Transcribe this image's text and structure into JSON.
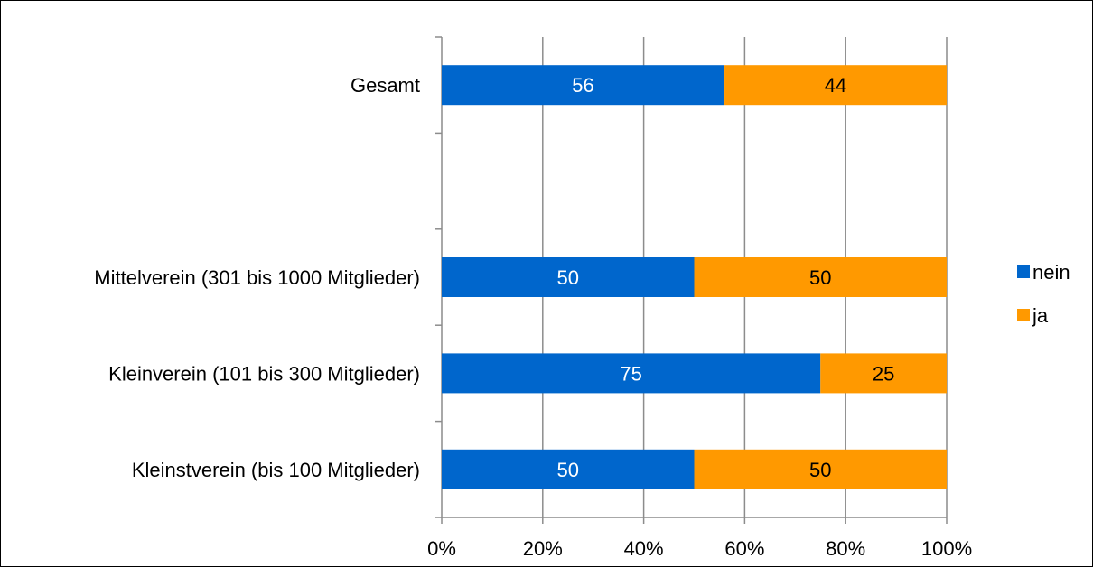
{
  "chart_data": {
    "type": "bar",
    "orientation": "horizontal",
    "stacking": "percent",
    "categories": [
      "Gesamt",
      "",
      "Mittelverein (301 bis 1000 Mitglieder)",
      "Kleinverein (101 bis 300 Mitglieder)",
      "Kleinstverein (bis 100 Mitglieder)"
    ],
    "series": [
      {
        "name": "nein",
        "color": "#0066cc",
        "label_color": "#ffffff",
        "values": [
          56,
          null,
          50,
          75,
          50
        ]
      },
      {
        "name": "ja",
        "color": "#ff9900",
        "label_color": "#000000",
        "values": [
          44,
          null,
          50,
          25,
          50
        ]
      }
    ],
    "xlim": [
      0,
      100
    ],
    "x_ticks": [
      "0%",
      "20%",
      "40%",
      "60%",
      "80%",
      "100%"
    ],
    "grid": "vertical",
    "legend": {
      "position": "right"
    }
  }
}
